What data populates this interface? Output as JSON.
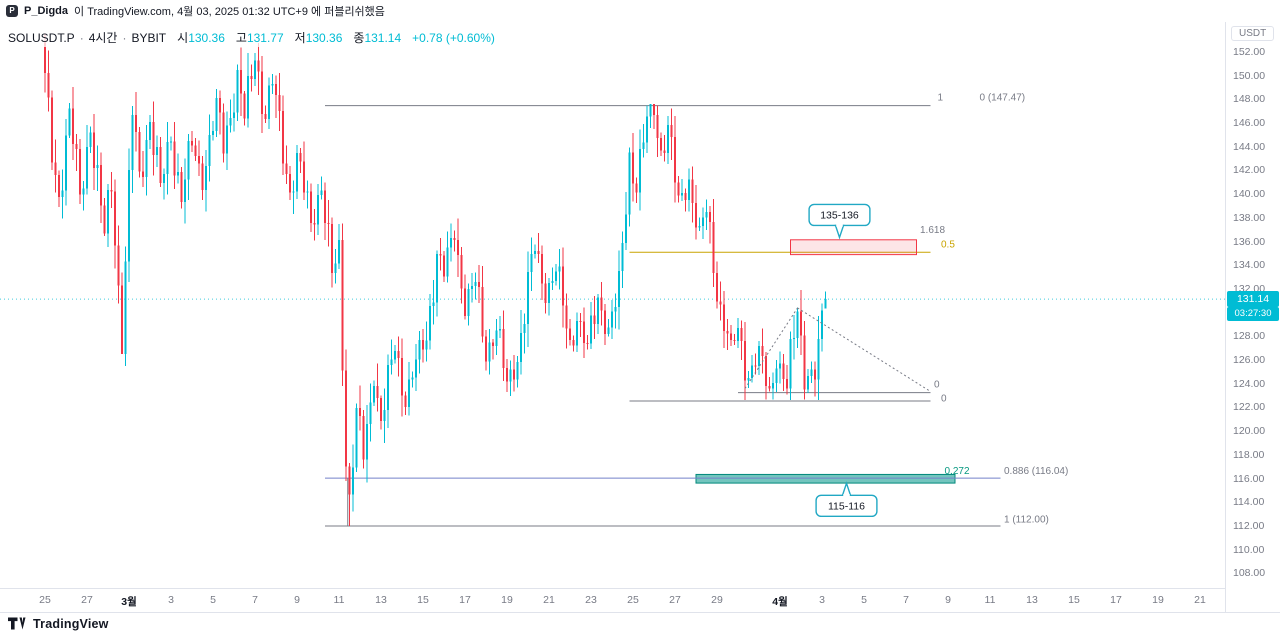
{
  "header": {
    "publisher": "P_Digda",
    "published_text": "이 TradingView.com, 4월 03, 2025 01:32 UTC+9 에 퍼블리쉬했음"
  },
  "legend": {
    "symbol": "SOLUSDT.P",
    "sep": "·",
    "timeframe": "4시간",
    "exchange": "BYBIT",
    "open_label": "시",
    "open": "130.36",
    "high_label": "고",
    "high": "131.77",
    "low_label": "저",
    "low": "130.36",
    "close_label": "종",
    "close": "131.14",
    "change": "+0.78 (+0.60%)"
  },
  "price_axis": {
    "currency": "USDT",
    "ticks": [
      152,
      150,
      148,
      146,
      144,
      142,
      140,
      138,
      136,
      134,
      132,
      130,
      128,
      126,
      124,
      122,
      120,
      118,
      116,
      114,
      112,
      110,
      108
    ],
    "badge": "131.14",
    "countdown": "03:27:30"
  },
  "time_axis": {
    "ticks": [
      {
        "label": "25",
        "d": 0
      },
      {
        "label": "27",
        "d": 2
      },
      {
        "label": "3월",
        "d": 4,
        "month": true
      },
      {
        "label": "3",
        "d": 6
      },
      {
        "label": "5",
        "d": 8
      },
      {
        "label": "7",
        "d": 10
      },
      {
        "label": "9",
        "d": 12
      },
      {
        "label": "11",
        "d": 14
      },
      {
        "label": "13",
        "d": 16
      },
      {
        "label": "15",
        "d": 18
      },
      {
        "label": "17",
        "d": 20
      },
      {
        "label": "19",
        "d": 22
      },
      {
        "label": "21",
        "d": 24
      },
      {
        "label": "23",
        "d": 26
      },
      {
        "label": "25",
        "d": 28
      },
      {
        "label": "27",
        "d": 30
      },
      {
        "label": "29",
        "d": 32
      },
      {
        "label": "4월",
        "d": 35,
        "month": true
      },
      {
        "label": "3",
        "d": 37
      },
      {
        "label": "5",
        "d": 39
      },
      {
        "label": "7",
        "d": 41
      },
      {
        "label": "9",
        "d": 43
      },
      {
        "label": "11",
        "d": 45
      },
      {
        "label": "13",
        "d": 47
      },
      {
        "label": "15",
        "d": 49
      },
      {
        "label": "17",
        "d": 51
      },
      {
        "label": "19",
        "d": 53
      },
      {
        "label": "21",
        "d": 55
      }
    ]
  },
  "footer": {
    "brand": "TradingView"
  },
  "colors": {
    "up": "#00BCD4",
    "down": "#F23645",
    "text": "#131722",
    "axis_text": "#787b86",
    "border": "#e0e3eb",
    "badge_bg": "#00BCD4",
    "badge_text": "#ffffff",
    "callout": "#21a8c4",
    "zone_red_fill": "rgba(242,54,69,0.13)",
    "zone_red_stroke": "#F23645",
    "zone_teal_fill": "rgba(0,150,136,0.55)",
    "zone_teal_stroke": "#00897B",
    "fib_blue": "#7381c9",
    "fib_yellow": "#c9a400",
    "neutral_line": "#787b86",
    "dotted": "#787b86"
  },
  "chart_data": {
    "type": "candlestick",
    "symbol": "SOLUSDT.P",
    "timeframe": "4시간",
    "exchange": "BYBIT",
    "title": "SOLUSDT.P · 4시간 · BYBIT",
    "ylabel": "USDT",
    "ylim": [
      106.8,
      154.5
    ],
    "grid": false,
    "last_candle": {
      "open": 130.36,
      "high": 131.77,
      "low": 130.36,
      "close": 131.14,
      "change": 0.78,
      "change_pct": 0.6
    },
    "candle_count": 224,
    "price_path": [
      [
        0,
        149.5
      ],
      [
        2,
        143.5
      ],
      [
        4,
        139.8
      ],
      [
        7,
        147.0
      ],
      [
        10,
        139.8
      ],
      [
        13,
        145.6
      ],
      [
        17,
        136.6
      ],
      [
        19,
        141.0
      ],
      [
        22,
        127.6
      ],
      [
        25,
        147.0
      ],
      [
        27,
        141.6
      ],
      [
        30,
        146.2
      ],
      [
        33,
        140.6
      ],
      [
        36,
        144.8
      ],
      [
        39,
        139.6
      ],
      [
        42,
        144.2
      ],
      [
        45,
        141.2
      ],
      [
        49,
        147.6
      ],
      [
        51,
        143.8
      ],
      [
        55,
        150.2
      ],
      [
        57,
        146.4
      ],
      [
        60,
        151.6
      ],
      [
        63,
        146.6
      ],
      [
        65,
        149.4
      ],
      [
        70,
        140.2
      ],
      [
        72,
        143.2
      ],
      [
        76,
        137.6
      ],
      [
        79,
        140.8
      ],
      [
        82,
        133.2
      ],
      [
        84,
        135.0
      ],
      [
        86,
        118.0
      ],
      [
        87,
        114.5
      ],
      [
        89,
        121.5
      ],
      [
        91,
        117.8
      ],
      [
        94,
        124.6
      ],
      [
        96,
        120.8
      ],
      [
        100,
        127.0
      ],
      [
        103,
        122.6
      ],
      [
        106,
        125.8
      ],
      [
        109,
        128.0
      ],
      [
        112,
        135.0
      ],
      [
        114,
        133.2
      ],
      [
        117,
        136.8
      ],
      [
        120,
        130.6
      ],
      [
        123,
        132.6
      ],
      [
        126,
        126.6
      ],
      [
        129,
        128.6
      ],
      [
        132,
        123.9
      ],
      [
        135,
        126.2
      ],
      [
        138,
        132.2
      ],
      [
        140,
        135.4
      ],
      [
        143,
        131.6
      ],
      [
        146,
        133.6
      ],
      [
        150,
        127.4
      ],
      [
        152,
        129.6
      ],
      [
        155,
        127.0
      ],
      [
        158,
        131.2
      ],
      [
        161,
        128.6
      ],
      [
        164,
        131.8
      ],
      [
        167,
        143.2
      ],
      [
        169,
        140.6
      ],
      [
        172,
        146.2
      ],
      [
        174,
        147.3
      ],
      [
        176,
        143.6
      ],
      [
        178,
        145.6
      ],
      [
        181,
        139.2
      ],
      [
        184,
        141.2
      ],
      [
        187,
        136.6
      ],
      [
        189,
        138.6
      ],
      [
        193,
        130.2
      ],
      [
        196,
        127.0
      ],
      [
        198,
        128.6
      ],
      [
        201,
        124.6
      ],
      [
        204,
        126.6
      ],
      [
        207,
        123.4
      ],
      [
        209,
        126.0
      ],
      [
        212,
        123.6
      ],
      [
        215,
        130.4
      ],
      [
        217,
        125.0
      ],
      [
        220,
        124.6
      ],
      [
        223,
        131.14
      ]
    ],
    "anchors": [
      {
        "i": 0,
        "o": 152.8,
        "h": 153.5,
        "l": 148.6
      },
      {
        "i": 22,
        "l": 126.7
      },
      {
        "i": 60,
        "h": 151.9
      },
      {
        "i": 86,
        "l": 115.8
      },
      {
        "i": 87,
        "l": 112.0
      },
      {
        "i": 174,
        "h": 147.47
      },
      {
        "i": 223,
        "o": 130.36,
        "h": 131.77,
        "l": 130.36,
        "c": 131.14
      }
    ],
    "clamp": {
      "high_max": 153.6,
      "low_min": 111.9,
      "peak": {
        "i1": 166,
        "i2": 184,
        "max": 147.47
      }
    },
    "key_levels": [
      {
        "label": "0 (147.47)",
        "price": 147.47
      },
      {
        "label": "0.5",
        "price": 135.1
      },
      {
        "label": "supply zone 135-136",
        "range": [
          134.9,
          136.15
        ]
      },
      {
        "label": "0 (upper fib)",
        "price": 123.25
      },
      {
        "label": "0 (lower fib)",
        "price": 122.55
      },
      {
        "label": "0.886 (116.04)",
        "price": 116.04
      },
      {
        "label": "demand zone 115-116",
        "range": [
          115.62,
          116.35
        ]
      },
      {
        "label": "1 (112.00)",
        "price": 112.0
      },
      {
        "label": "current price",
        "price": 131.14
      }
    ],
    "annotations": [
      {
        "type": "priceline",
        "price": 131.14,
        "color": "#00BCD4"
      },
      {
        "type": "hline",
        "price": 147.47,
        "i1": 80,
        "i2": 253,
        "color": "#787b86",
        "width": 1
      },
      {
        "type": "hline",
        "price": 135.1,
        "i1": 167,
        "i2": 253,
        "color": "#c9a400",
        "width": 1
      },
      {
        "type": "box",
        "p1": 136.15,
        "p2": 134.9,
        "i1": 213,
        "i2": 249,
        "fill": "rgba(242,54,69,0.13)",
        "stroke": "#F23645",
        "name": "supply-zone-box"
      },
      {
        "type": "hline",
        "price": 123.25,
        "i1": 198,
        "i2": 253,
        "color": "#787b86",
        "width": 1
      },
      {
        "type": "hline",
        "price": 122.55,
        "i1": 167,
        "i2": 253,
        "color": "#787b86",
        "width": 1
      },
      {
        "type": "box",
        "p1": 116.35,
        "p2": 115.62,
        "i1": 186,
        "i2": 260,
        "fill": "rgba(0,150,136,0.55)",
        "stroke": "#00897B",
        "name": "demand-zone-box"
      },
      {
        "type": "hline",
        "price": 116.04,
        "i1": 80,
        "i2": 273,
        "color": "#7381c9",
        "width": 1
      },
      {
        "type": "hline",
        "price": 112.0,
        "i1": 80,
        "i2": 273,
        "color": "#787b86",
        "width": 1
      },
      {
        "type": "vline",
        "i": 86.5,
        "p1": 116.04,
        "p2": 112.0,
        "color": "#787b86"
      },
      {
        "type": "dline",
        "i1": 215,
        "p1": 130.4,
        "i2": 253,
        "p2": 123.35,
        "color": "#787b86"
      },
      {
        "type": "dline",
        "i1": 200,
        "p1": 123.6,
        "i2": 215,
        "p2": 130.4,
        "color": "#787b86"
      },
      {
        "type": "text",
        "text": "1",
        "price": 148.2,
        "i": 255,
        "color": "#787b86"
      },
      {
        "type": "text",
        "text": "0 (147.47)",
        "price": 148.2,
        "i": 267,
        "color": "#787b86"
      },
      {
        "type": "text",
        "text": "1.618",
        "price": 137.0,
        "i": 250,
        "color": "#787b86"
      },
      {
        "type": "text",
        "text": "0.5",
        "price": 135.8,
        "i": 256,
        "color": "#c9a400"
      },
      {
        "type": "text",
        "text": "0",
        "price": 124.0,
        "i": 254,
        "color": "#787b86"
      },
      {
        "type": "text",
        "text": "0",
        "price": 122.8,
        "i": 256,
        "color": "#787b86"
      },
      {
        "type": "text",
        "text": "0.272",
        "price": 116.7,
        "i": 257,
        "color": "#089981"
      },
      {
        "type": "text",
        "text": "0.886 (116.04)",
        "price": 116.7,
        "i": 274,
        "color": "#787b86"
      },
      {
        "type": "text",
        "text": "1 (112.00)",
        "price": 112.6,
        "i": 274,
        "color": "#787b86"
      },
      {
        "type": "callout",
        "text": "135-136",
        "i": 227,
        "price": 136.35,
        "dir": "down",
        "color": "#21a8c4"
      },
      {
        "type": "callout",
        "text": "115-116",
        "i": 229,
        "price": 115.6,
        "dir": "up",
        "color": "#21a8c4"
      }
    ]
  }
}
